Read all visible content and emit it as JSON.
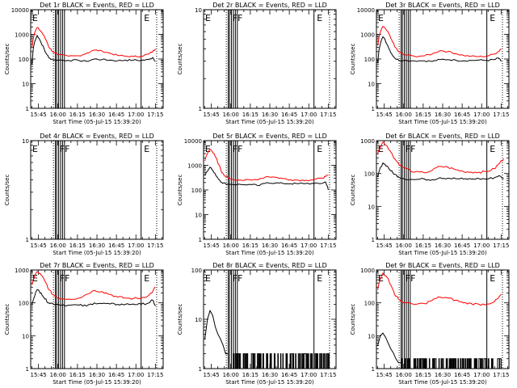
{
  "figure": {
    "ylabel": "Counts/sec",
    "xlabel": "Start Time (05-Jul-15 15:39:20)",
    "xticks": [
      "15:45",
      "16:00",
      "16:15",
      "16:30",
      "16:45",
      "17:00",
      "17:15"
    ],
    "colors": {
      "events": "#000000",
      "lld": "#ff0000",
      "axes": "#000000"
    }
  },
  "chart_data": [
    {
      "type": "line",
      "title": "Det 1r BLACK = Events, RED = LLD",
      "yscale": "log",
      "ylim": [
        1,
        10000
      ],
      "yticks": [
        "1",
        "10",
        "100",
        "1000",
        "10000"
      ],
      "xlim": [
        "15:39",
        "17:21"
      ],
      "annotations": [
        {
          "x": "15:39",
          "text": "E"
        },
        {
          "x": "17:05",
          "text": "E"
        }
      ],
      "series": [
        {
          "name": "Events",
          "color": "#000000",
          "x": [
            "15:40",
            "15:44",
            "15:47",
            "15:50",
            "15:53",
            "15:56",
            "16:00",
            "16:08",
            "16:16",
            "16:22",
            "16:28",
            "16:34",
            "16:40",
            "16:46",
            "16:52",
            "16:58",
            "17:04",
            "17:10",
            "17:13",
            "17:15"
          ],
          "y": [
            60,
            900,
            450,
            200,
            110,
            95,
            90,
            88,
            88,
            80,
            100,
            95,
            90,
            85,
            90,
            90,
            88,
            95,
            115,
            80
          ]
        },
        {
          "name": "LLD",
          "color": "#ff0000",
          "x": [
            "15:40",
            "15:44",
            "15:47",
            "15:50",
            "15:53",
            "15:56",
            "16:00",
            "16:08",
            "16:16",
            "16:22",
            "16:28",
            "16:34",
            "16:40",
            "16:46",
            "16:52",
            "16:58",
            "17:04",
            "17:10",
            "17:13",
            "17:15"
          ],
          "y": [
            300,
            1900,
            1300,
            700,
            300,
            200,
            150,
            130,
            135,
            170,
            230,
            210,
            170,
            140,
            130,
            125,
            130,
            160,
            200,
            260
          ]
        }
      ]
    },
    {
      "type": "line",
      "title": "Det 2r BLACK = Events, RED = LLD",
      "yscale": "log",
      "ylim": [
        1,
        10
      ],
      "yticks": [
        "1",
        "10"
      ],
      "xlim": [
        "15:39",
        "17:21"
      ],
      "annotations": [
        {
          "x": "15:39",
          "text": "E"
        },
        {
          "x": "16:00",
          "text": "FF"
        },
        {
          "x": "17:05",
          "text": "E"
        }
      ],
      "series": []
    },
    {
      "type": "line",
      "title": "Det 3r BLACK = Events, RED = LLD",
      "yscale": "log",
      "ylim": [
        1,
        10000
      ],
      "yticks": [
        "1",
        "10",
        "100",
        "1000",
        "10000"
      ],
      "xlim": [
        "15:39",
        "17:21"
      ],
      "annotations": [
        {
          "x": "15:39",
          "text": "E"
        },
        {
          "x": "17:05",
          "text": "E"
        }
      ],
      "series": [
        {
          "name": "Events",
          "color": "#000000",
          "x": [
            "15:40",
            "15:44",
            "15:47",
            "15:50",
            "15:53",
            "15:56",
            "16:00",
            "16:08",
            "16:16",
            "16:22",
            "16:28",
            "16:34",
            "16:40",
            "16:46",
            "16:52",
            "16:58",
            "17:04",
            "17:10",
            "17:13",
            "17:15"
          ],
          "y": [
            70,
            800,
            400,
            180,
            110,
            90,
            88,
            85,
            85,
            80,
            95,
            95,
            90,
            85,
            88,
            90,
            88,
            95,
            110,
            80
          ]
        },
        {
          "name": "LLD",
          "color": "#ff0000",
          "x": [
            "15:40",
            "15:44",
            "15:47",
            "15:50",
            "15:53",
            "15:56",
            "16:00",
            "16:08",
            "16:16",
            "16:22",
            "16:28",
            "16:34",
            "16:40",
            "16:46",
            "16:52",
            "16:58",
            "17:04",
            "17:10",
            "17:13",
            "17:15"
          ],
          "y": [
            350,
            2100,
            1400,
            700,
            320,
            200,
            150,
            130,
            135,
            160,
            220,
            200,
            165,
            140,
            130,
            125,
            130,
            160,
            200,
            260
          ]
        }
      ]
    },
    {
      "type": "line",
      "title": "Det 4r BLACK = Events, RED = LLD",
      "yscale": "log",
      "ylim": [
        1,
        10
      ],
      "yticks": [
        "1",
        "10"
      ],
      "xlim": [
        "15:39",
        "17:21"
      ],
      "annotations": [
        {
          "x": "15:39",
          "text": "E"
        },
        {
          "x": "16:00",
          "text": "FF"
        },
        {
          "x": "17:05",
          "text": "E"
        }
      ],
      "series": []
    },
    {
      "type": "line",
      "title": "Det 5r BLACK = Events, RED = LLD",
      "yscale": "log",
      "ylim": [
        1,
        10000
      ],
      "yticks": [
        "1",
        "10",
        "100",
        "1000",
        "10000"
      ],
      "xlim": [
        "15:39",
        "17:21"
      ],
      "annotations": [
        {
          "x": "15:39",
          "text": "E"
        },
        {
          "x": "16:00",
          "text": "FF"
        },
        {
          "x": "17:05",
          "text": "E"
        }
      ],
      "series": [
        {
          "name": "Events",
          "color": "#000000",
          "x": [
            "15:40",
            "15:44",
            "15:47",
            "15:50",
            "15:53",
            "15:56",
            "16:00",
            "16:08",
            "16:16",
            "16:22",
            "16:28",
            "16:34",
            "16:40",
            "16:46",
            "16:52",
            "16:58",
            "17:04",
            "17:10",
            "17:13",
            "17:15"
          ],
          "y": [
            400,
            850,
            500,
            300,
            200,
            180,
            170,
            165,
            165,
            150,
            200,
            190,
            185,
            180,
            180,
            185,
            180,
            185,
            210,
            100
          ]
        },
        {
          "name": "LLD",
          "color": "#ff0000",
          "x": [
            "15:40",
            "15:44",
            "15:47",
            "15:50",
            "15:53",
            "15:56",
            "16:00",
            "16:08",
            "16:16",
            "16:22",
            "16:28",
            "16:34",
            "16:40",
            "16:46",
            "16:52",
            "16:58",
            "17:04",
            "17:10",
            "17:13",
            "17:15"
          ],
          "y": [
            1500,
            4500,
            3000,
            1200,
            500,
            350,
            280,
            250,
            250,
            280,
            350,
            330,
            290,
            260,
            250,
            250,
            260,
            300,
            350,
            400
          ]
        }
      ]
    },
    {
      "type": "line",
      "title": "Det 6r BLACK = Events, RED = LLD",
      "yscale": "log",
      "ylim": [
        1,
        1000
      ],
      "yticks": [
        "1",
        "10",
        "100",
        "1000"
      ],
      "xlim": [
        "15:39",
        "17:21"
      ],
      "annotations": [
        {
          "x": "15:39",
          "text": "E"
        },
        {
          "x": "16:00",
          "text": "FF"
        },
        {
          "x": "17:05",
          "text": "E"
        }
      ],
      "series": [
        {
          "name": "Events",
          "color": "#000000",
          "x": [
            "15:40",
            "15:44",
            "15:47",
            "15:50",
            "15:53",
            "15:56",
            "16:00",
            "16:08",
            "16:16",
            "16:22",
            "16:28",
            "16:34",
            "16:40",
            "16:46",
            "16:52",
            "16:58",
            "17:04",
            "17:10",
            "17:13",
            "17:17"
          ],
          "y": [
            80,
            210,
            170,
            120,
            95,
            80,
            70,
            65,
            68,
            65,
            75,
            72,
            70,
            68,
            68,
            70,
            68,
            75,
            85,
            70
          ]
        },
        {
          "name": "LLD",
          "color": "#ff0000",
          "x": [
            "15:40",
            "15:44",
            "15:47",
            "15:50",
            "15:53",
            "15:56",
            "16:00",
            "16:08",
            "16:16",
            "16:22",
            "16:28",
            "16:34",
            "16:40",
            "16:46",
            "16:52",
            "16:58",
            "17:04",
            "17:10",
            "17:13",
            "17:17"
          ],
          "y": [
            400,
            900,
            700,
            450,
            280,
            200,
            150,
            110,
            105,
            125,
            165,
            155,
            130,
            115,
            110,
            110,
            115,
            140,
            190,
            280
          ]
        }
      ]
    },
    {
      "type": "line",
      "title": "Det 7r BLACK = Events, RED = LLD",
      "yscale": "log",
      "ylim": [
        1,
        1000
      ],
      "yticks": [
        "1",
        "10",
        "100",
        "1000"
      ],
      "xlim": [
        "15:39",
        "17:21"
      ],
      "annotations": [
        {
          "x": "15:39",
          "text": "E"
        },
        {
          "x": "16:00",
          "text": "FF"
        },
        {
          "x": "17:05",
          "text": "E"
        }
      ],
      "series": [
        {
          "name": "Events",
          "color": "#000000",
          "x": [
            "15:40",
            "15:44",
            "15:47",
            "15:50",
            "15:53",
            "15:56",
            "16:00",
            "16:08",
            "16:16",
            "16:22",
            "16:28",
            "16:34",
            "16:40",
            "16:46",
            "16:52",
            "16:58",
            "17:04",
            "17:10",
            "17:13",
            "17:15"
          ],
          "y": [
            90,
            250,
            200,
            130,
            100,
            95,
            90,
            85,
            85,
            80,
            100,
            95,
            92,
            90,
            90,
            92,
            90,
            100,
            120,
            80
          ]
        },
        {
          "name": "LLD",
          "color": "#ff0000",
          "x": [
            "15:40",
            "15:44",
            "15:47",
            "15:50",
            "15:53",
            "15:56",
            "16:00",
            "16:08",
            "16:16",
            "16:22",
            "16:28",
            "16:34",
            "16:40",
            "16:46",
            "16:52",
            "16:58",
            "17:04",
            "17:10",
            "17:13",
            "17:15"
          ],
          "y": [
            350,
            900,
            700,
            450,
            250,
            180,
            140,
            130,
            140,
            180,
            240,
            220,
            180,
            150,
            140,
            135,
            140,
            170,
            220,
            300
          ]
        }
      ]
    },
    {
      "type": "line",
      "title": "Det 8r BLACK = Events, RED = LLD",
      "yscale": "log",
      "ylim": [
        1,
        100
      ],
      "yticks": [
        "1",
        "10",
        "100"
      ],
      "xlim": [
        "15:39",
        "17:21"
      ],
      "annotations": [
        {
          "x": "15:39",
          "text": "E"
        },
        {
          "x": "16:00",
          "text": "FF"
        },
        {
          "x": "17:05",
          "text": "E"
        }
      ],
      "series": [
        {
          "name": "Events",
          "color": "#000000",
          "x": [
            "15:40",
            "15:42",
            "15:44",
            "15:46",
            "15:48",
            "15:50",
            "15:52",
            "15:54",
            "15:56",
            "15:58",
            "16:10",
            "16:20",
            "16:30",
            "16:40",
            "16:50",
            "17:00",
            "17:10",
            "17:17"
          ],
          "y": [
            4,
            10,
            15,
            12,
            7,
            5,
            4,
            3,
            2,
            2,
            2,
            2,
            2,
            2,
            2,
            2,
            2,
            2
          ],
          "noise_between": [
            1,
            2
          ]
        }
      ]
    },
    {
      "type": "line",
      "title": "Det 9r BLACK = Events, RED = LLD",
      "yscale": "log",
      "ylim": [
        1,
        1000
      ],
      "yticks": [
        "1",
        "10",
        "100",
        "1000"
      ],
      "xlim": [
        "15:39",
        "17:21"
      ],
      "annotations": [
        {
          "x": "15:39",
          "text": "E"
        },
        {
          "x": "16:00",
          "text": "FF"
        },
        {
          "x": "17:05",
          "text": "E"
        }
      ],
      "series": [
        {
          "name": "Events",
          "color": "#000000",
          "x": [
            "15:40",
            "15:42",
            "15:44",
            "15:46",
            "15:48",
            "15:50",
            "15:52",
            "15:54",
            "15:56",
            "15:58",
            "16:10",
            "16:20",
            "16:30",
            "16:40",
            "16:50",
            "17:00",
            "17:10",
            "17:15"
          ],
          "y": [
            5,
            10,
            12,
            9,
            6,
            4,
            3,
            2,
            1.5,
            1.5,
            1.5,
            1.5,
            1.5,
            1.5,
            1.5,
            1.5,
            1.5,
            1.5
          ],
          "noise_between": [
            1,
            2
          ]
        },
        {
          "name": "LLD",
          "color": "#ff0000",
          "x": [
            "15:40",
            "15:44",
            "15:47",
            "15:50",
            "15:53",
            "15:56",
            "16:00",
            "16:08",
            "16:16",
            "16:22",
            "16:28",
            "16:34",
            "16:40",
            "16:46",
            "16:52",
            "16:58",
            "17:04",
            "17:10",
            "17:13",
            "17:15"
          ],
          "y": [
            250,
            800,
            600,
            350,
            180,
            130,
            100,
            90,
            95,
            120,
            150,
            140,
            120,
            100,
            95,
            90,
            92,
            110,
            140,
            180
          ]
        }
      ]
    }
  ]
}
